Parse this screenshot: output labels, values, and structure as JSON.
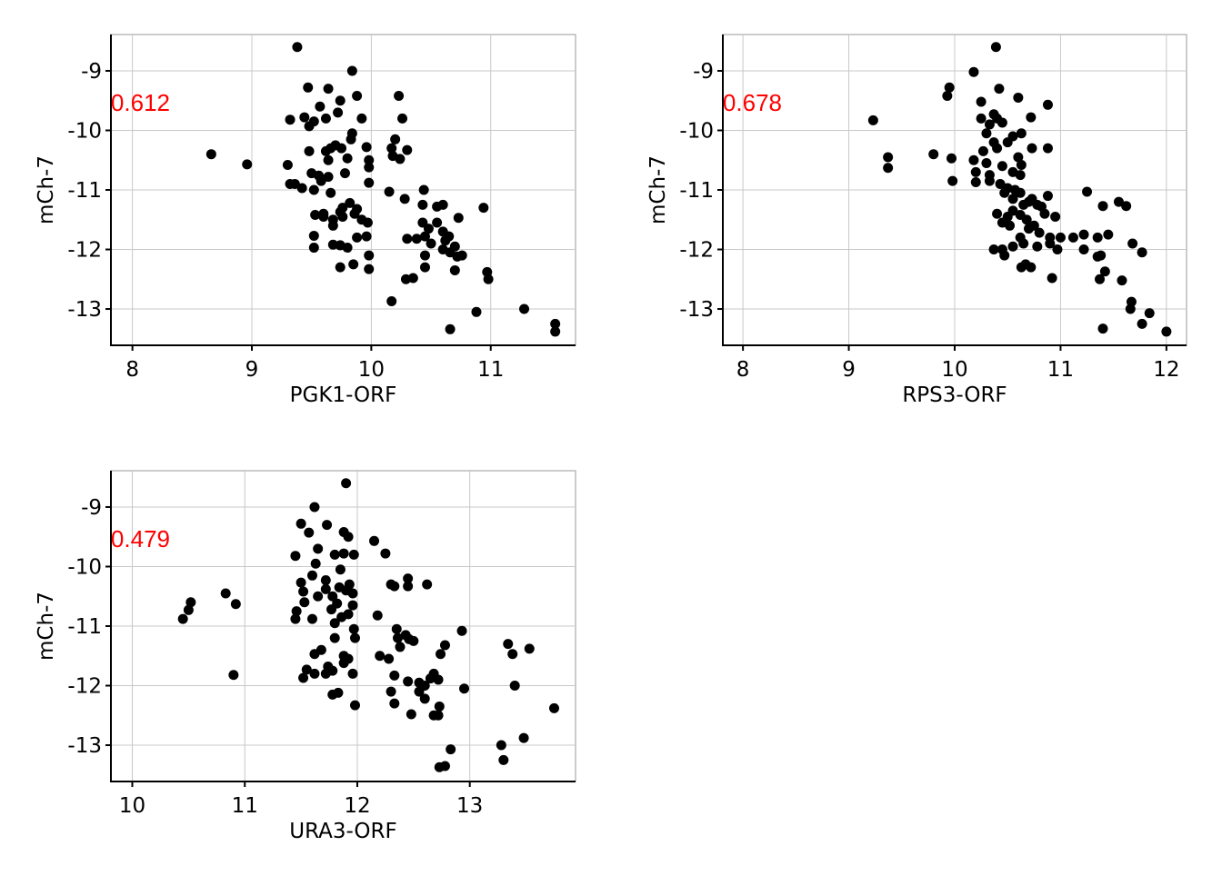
{
  "chart_data": [
    {
      "type": "scatter",
      "x_label": "PGK1-ORF",
      "y_label": "mCh-7",
      "annotation": "0.612",
      "annotation_color": "#ff0000",
      "color": "#000000",
      "grid": true,
      "xlim": [
        7.82,
        11.71
      ],
      "ylim": [
        -13.61,
        -8.39
      ],
      "xticks": [
        8,
        9,
        10,
        11
      ],
      "yticks": [
        -9,
        -10,
        -11,
        -12,
        -13
      ],
      "x": [
        9.38,
        9.84,
        9.47,
        9.64,
        9.74,
        9.88,
        10.23,
        9.57,
        9.44,
        9.32,
        9.52,
        9.72,
        9.92,
        10.26,
        9.62,
        9.48,
        9.84,
        9.75,
        9.66,
        9.83,
        9.96,
        10.2,
        10.3,
        10.17,
        8.66,
        8.96,
        9.3,
        9.48,
        9.62,
        9.7,
        9.64,
        9.8,
        9.98,
        10.18,
        10.24,
        9.98,
        9.5,
        9.56,
        9.64,
        9.78,
        9.32,
        9.36,
        9.42,
        9.58,
        9.52,
        9.66,
        9.98,
        10.15,
        10.28,
        10.44,
        9.74,
        9.82,
        9.88,
        9.6,
        9.68,
        9.76,
        9.86,
        9.92,
        9.97,
        10.43,
        10.55,
        10.6,
        10.73,
        10.94,
        9.53,
        9.6,
        9.76,
        9.52,
        9.68,
        10.43,
        10.48,
        10.55,
        10.6,
        10.3,
        10.38,
        10.45,
        10.5,
        10.62,
        10.65,
        10.7,
        9.52,
        9.68,
        9.74,
        9.8,
        9.88,
        9.96,
        10.6,
        10.66,
        10.72,
        10.76,
        9.98,
        10.45,
        9.74,
        9.85,
        9.98,
        10.45,
        10.29,
        10.35,
        10.7,
        10.97,
        10.98,
        10.17,
        10.88,
        11.28,
        10.66,
        11.54,
        11.54
      ],
      "values": [
        -8.6,
        -9.0,
        -9.28,
        -9.3,
        -9.5,
        -9.42,
        -9.42,
        -9.6,
        -9.78,
        -9.82,
        -9.85,
        -9.7,
        -9.8,
        -9.8,
        -9.8,
        -9.93,
        -10.05,
        -10.3,
        -10.3,
        -10.15,
        -10.28,
        -10.15,
        -10.33,
        -10.3,
        -10.4,
        -10.57,
        -10.58,
        -10.35,
        -10.35,
        -10.25,
        -10.5,
        -10.47,
        -10.5,
        -10.43,
        -10.48,
        -10.62,
        -10.72,
        -10.76,
        -10.78,
        -10.72,
        -10.9,
        -10.9,
        -10.97,
        -10.85,
        -11.0,
        -11.05,
        -10.88,
        -11.03,
        -11.15,
        -11.0,
        -11.37,
        -11.22,
        -11.32,
        -11.4,
        -11.5,
        -11.3,
        -11.4,
        -11.5,
        -11.55,
        -11.25,
        -11.28,
        -11.25,
        -11.47,
        -11.3,
        -11.42,
        -11.45,
        -11.45,
        -11.77,
        -11.6,
        -11.55,
        -11.65,
        -11.55,
        -11.7,
        -11.82,
        -11.82,
        -11.78,
        -11.9,
        -11.85,
        -11.78,
        -11.95,
        -11.97,
        -11.92,
        -11.93,
        -11.97,
        -11.8,
        -11.78,
        -12.0,
        -12.05,
        -12.12,
        -12.1,
        -12.1,
        -12.1,
        -12.3,
        -12.25,
        -12.33,
        -12.3,
        -12.5,
        -12.48,
        -12.35,
        -12.38,
        -12.5,
        -12.87,
        -13.05,
        -13.0,
        -13.34,
        -13.25,
        -13.38
      ]
    },
    {
      "type": "scatter",
      "x_label": "RPS3-ORF",
      "y_label": "mCh-7",
      "annotation": "0.678",
      "annotation_color": "#ff0000",
      "color": "#000000",
      "grid": true,
      "xlim": [
        7.81,
        12.19
      ],
      "ylim": [
        -13.61,
        -8.39
      ],
      "xticks": [
        8,
        9,
        10,
        11,
        12
      ],
      "yticks": [
        -9,
        -10,
        -11,
        -12,
        -13
      ],
      "x": [
        10.39,
        10.18,
        9.95,
        10.42,
        9.93,
        10.6,
        10.25,
        10.88,
        10.37,
        10.4,
        10.25,
        10.33,
        10.72,
        9.23,
        10.45,
        10.3,
        10.55,
        10.63,
        10.37,
        10.5,
        10.4,
        10.27,
        10.73,
        10.88,
        10.6,
        10.18,
        9.97,
        9.8,
        9.37,
        9.37,
        10.3,
        10.45,
        10.63,
        10.2,
        10.33,
        10.55,
        10.62,
        9.98,
        10.2,
        10.33,
        10.43,
        10.5,
        10.57,
        10.47,
        10.62,
        10.55,
        10.7,
        10.73,
        10.88,
        11.25,
        10.65,
        10.78,
        10.82,
        10.4,
        10.5,
        10.55,
        10.62,
        10.68,
        10.85,
        10.95,
        11.4,
        11.55,
        11.62,
        10.45,
        10.52,
        10.7,
        10.75,
        10.8,
        10.62,
        10.9,
        11.0,
        11.12,
        11.22,
        11.35,
        11.45,
        10.65,
        10.78,
        10.9,
        10.55,
        10.45,
        10.37,
        10.97,
        11.22,
        11.35,
        11.38,
        11.68,
        11.77,
        10.47,
        10.67,
        10.72,
        10.63,
        10.92,
        11.42,
        11.37,
        11.58,
        11.67,
        11.66,
        11.84,
        11.77,
        11.4,
        12.0
      ],
      "values": [
        -8.6,
        -9.02,
        -9.28,
        -9.3,
        -9.42,
        -9.45,
        -9.52,
        -9.57,
        -9.73,
        -9.8,
        -9.8,
        -9.9,
        -9.78,
        -9.83,
        -9.87,
        -10.05,
        -10.1,
        -10.05,
        -10.2,
        -10.2,
        -10.3,
        -10.35,
        -10.3,
        -10.3,
        -10.45,
        -10.5,
        -10.47,
        -10.4,
        -10.45,
        -10.63,
        -10.55,
        -10.6,
        -10.58,
        -10.7,
        -10.75,
        -10.7,
        -10.75,
        -10.85,
        -10.87,
        -10.85,
        -10.9,
        -10.97,
        -11.0,
        -11.05,
        -11.05,
        -11.15,
        -11.2,
        -11.15,
        -11.1,
        -11.03,
        -11.25,
        -11.25,
        -11.28,
        -11.4,
        -11.45,
        -11.35,
        -11.42,
        -11.5,
        -11.4,
        -11.45,
        -11.27,
        -11.2,
        -11.27,
        -11.55,
        -11.6,
        -11.65,
        -11.6,
        -11.72,
        -11.8,
        -11.8,
        -11.8,
        -11.8,
        -11.75,
        -11.8,
        -11.75,
        -11.9,
        -11.95,
        -11.9,
        -11.95,
        -12.0,
        -12.0,
        -12.0,
        -12.0,
        -12.12,
        -12.1,
        -11.9,
        -12.05,
        -12.1,
        -12.25,
        -12.3,
        -12.3,
        -12.48,
        -12.37,
        -12.5,
        -12.52,
        -12.88,
        -13.0,
        -13.07,
        -13.25,
        -13.33,
        -13.38
      ]
    },
    {
      "type": "scatter",
      "x_label": "URA3-ORF",
      "y_label": "mCh-7",
      "annotation": "0.479",
      "annotation_color": "#ff0000",
      "color": "#000000",
      "grid": true,
      "xlim": [
        9.81,
        13.94
      ],
      "ylim": [
        -13.61,
        -8.39
      ],
      "xticks": [
        10,
        11,
        12,
        13
      ],
      "yticks": [
        -9,
        -10,
        -11,
        -12,
        -13
      ],
      "x": [
        11.9,
        11.62,
        11.5,
        11.73,
        11.88,
        11.92,
        11.57,
        12.15,
        12.25,
        11.45,
        11.65,
        11.8,
        11.88,
        11.97,
        11.63,
        11.85,
        11.6,
        11.5,
        11.72,
        11.93,
        12.3,
        12.33,
        12.45,
        12.45,
        12.62,
        11.52,
        11.72,
        11.84,
        11.9,
        11.96,
        10.83,
        10.52,
        10.92,
        11.65,
        11.78,
        11.53,
        11.82,
        11.96,
        10.5,
        10.45,
        11.45,
        11.6,
        11.46,
        11.77,
        11.86,
        11.92,
        12.18,
        11.8,
        11.97,
        12.35,
        12.43,
        12.36,
        12.46,
        12.5,
        12.93,
        11.8,
        11.98,
        12.38,
        12.78,
        11.62,
        11.68,
        11.88,
        11.92,
        12.2,
        12.28,
        12.74,
        13.34,
        13.53,
        13.38,
        11.55,
        11.62,
        11.74,
        11.78,
        11.88,
        11.96,
        12.33,
        12.45,
        12.55,
        12.65,
        12.68,
        12.72,
        11.72,
        11.52,
        10.9,
        12.6,
        12.55,
        12.3,
        12.95,
        13.4,
        11.83,
        11.78,
        11.98,
        12.33,
        12.6,
        12.73,
        13.75,
        12.48,
        12.68,
        12.72,
        13.48,
        12.83,
        13.28,
        13.3,
        12.73,
        12.78
      ],
      "values": [
        -8.6,
        -9.0,
        -9.28,
        -9.3,
        -9.42,
        -9.5,
        -9.43,
        -9.57,
        -9.78,
        -9.82,
        -9.7,
        -9.8,
        -9.78,
        -9.8,
        -9.95,
        -10.05,
        -10.15,
        -10.27,
        -10.23,
        -10.3,
        -10.3,
        -10.33,
        -10.33,
        -10.2,
        -10.3,
        -10.42,
        -10.38,
        -10.35,
        -10.4,
        -10.45,
        -10.45,
        -10.6,
        -10.63,
        -10.5,
        -10.5,
        -10.6,
        -10.62,
        -10.65,
        -10.73,
        -10.88,
        -10.88,
        -10.88,
        -10.75,
        -10.72,
        -10.85,
        -10.8,
        -10.82,
        -10.95,
        -11.05,
        -11.05,
        -11.15,
        -11.2,
        -11.22,
        -11.25,
        -11.08,
        -11.2,
        -11.2,
        -11.35,
        -11.32,
        -11.47,
        -11.4,
        -11.5,
        -11.55,
        -11.5,
        -11.55,
        -11.47,
        -11.3,
        -11.38,
        -11.47,
        -11.73,
        -11.8,
        -11.68,
        -11.75,
        -11.62,
        -11.8,
        -11.83,
        -11.93,
        -11.95,
        -11.88,
        -11.8,
        -11.9,
        -11.8,
        -11.87,
        -11.82,
        -12.0,
        -12.1,
        -12.1,
        -12.05,
        -12.0,
        -12.12,
        -12.15,
        -12.33,
        -12.3,
        -12.22,
        -12.35,
        -12.38,
        -12.48,
        -12.5,
        -12.5,
        -12.88,
        -13.07,
        -13.0,
        -13.25,
        -13.37,
        -13.35
      ]
    }
  ]
}
